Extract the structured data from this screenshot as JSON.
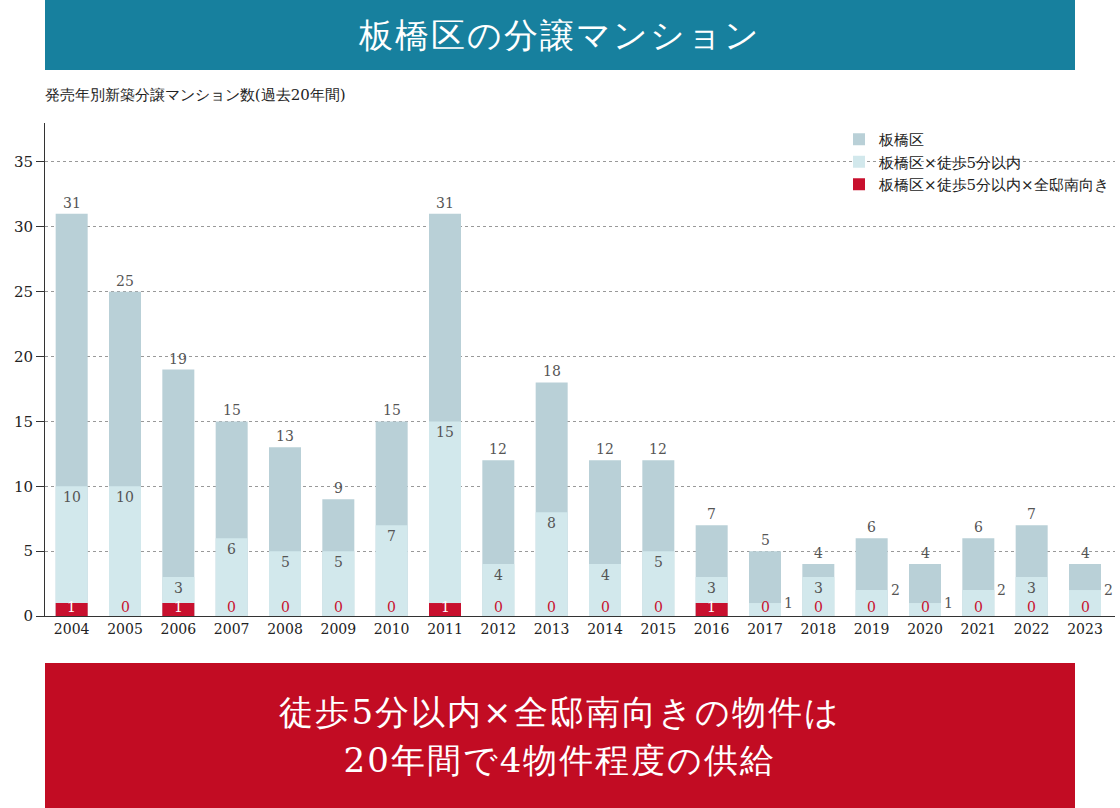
{
  "chart_data": {
    "type": "bar",
    "title": "板橋区の分譲マンション",
    "subtitle": "発売年別新築分譲マンション数(過去20年間)",
    "categories": [
      "2004",
      "2005",
      "2006",
      "2007",
      "2008",
      "2009",
      "2010",
      "2011",
      "2012",
      "2013",
      "2014",
      "2015",
      "2016",
      "2017",
      "2018",
      "2019",
      "2020",
      "2021",
      "2022",
      "2023"
    ],
    "series": [
      {
        "name": "板橋区",
        "color": "#b9d0d7",
        "values": [
          31,
          25,
          19,
          15,
          13,
          9,
          15,
          31,
          12,
          18,
          12,
          12,
          7,
          5,
          4,
          6,
          4,
          6,
          7,
          4
        ]
      },
      {
        "name": "板橋区×徒歩5分以内",
        "color": "#d2e8ec",
        "values": [
          10,
          10,
          3,
          6,
          5,
          5,
          7,
          15,
          4,
          8,
          4,
          5,
          3,
          1,
          3,
          2,
          1,
          2,
          3,
          2
        ]
      },
      {
        "name": "板橋区×徒歩5分以内×全邸南向き",
        "color": "#c8102e",
        "values": [
          1,
          0,
          1,
          0,
          0,
          0,
          0,
          1,
          0,
          0,
          0,
          0,
          1,
          0,
          0,
          0,
          0,
          0,
          0,
          0
        ]
      }
    ],
    "stacked": false,
    "data_labels": true,
    "ylim": [
      0,
      38
    ],
    "yticks": [
      0,
      5,
      10,
      15,
      20,
      25,
      30,
      35
    ],
    "grid": true,
    "legend": "top right",
    "annotations": [
      "徒歩5分以内×全邸南向きの物件は",
      "20年間で4物件程度の供給"
    ]
  }
}
